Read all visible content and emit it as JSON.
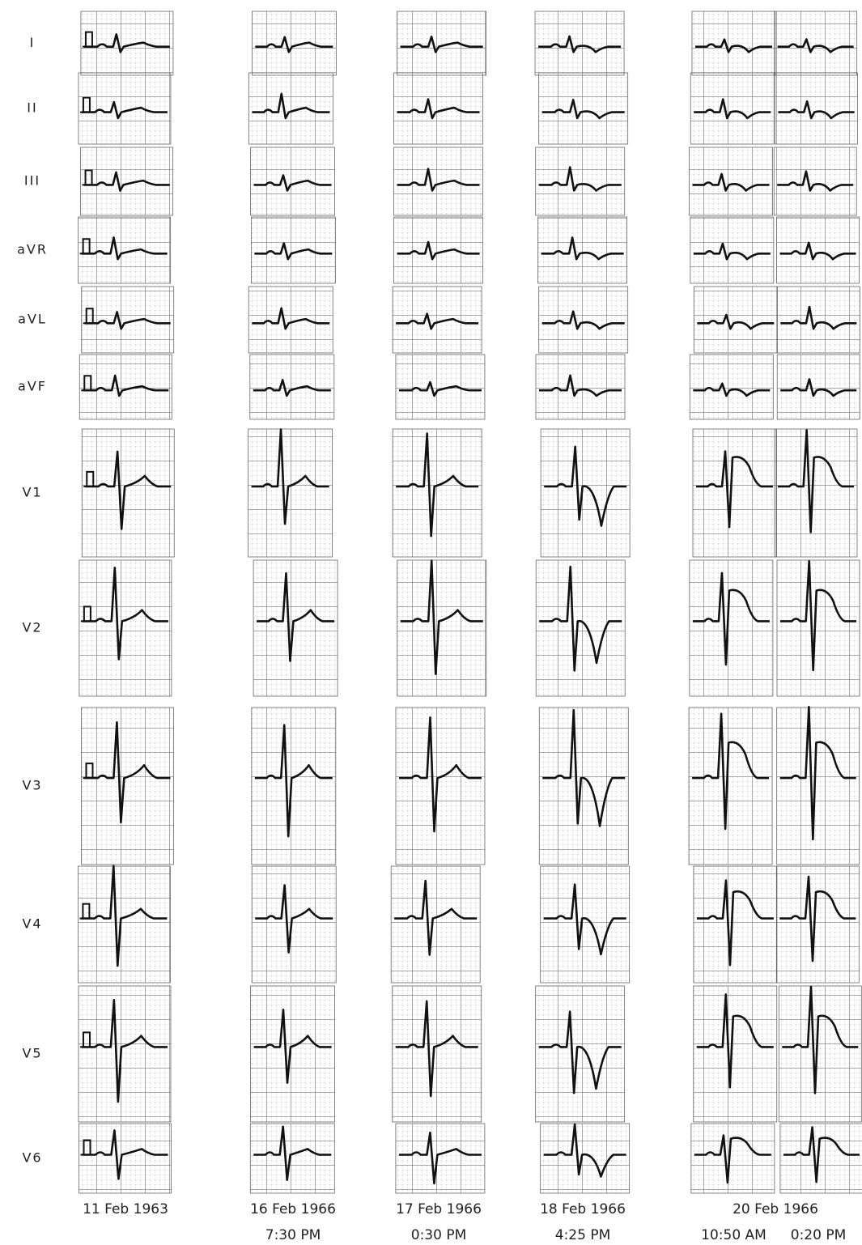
{
  "leads": [
    "I",
    "II",
    "III",
    "aVR",
    "aVL",
    "aVF",
    "V1",
    "V2",
    "V3",
    "V4",
    "V5",
    "V6"
  ],
  "recordings": [
    {
      "date": "11 Feb 1963"
    },
    {
      "date": "16 Feb 1966",
      "times": [
        "7:30 PM"
      ]
    },
    {
      "date": "17 Feb 1966",
      "times": [
        "0:30 PM"
      ]
    },
    {
      "date": "18 Feb 1966",
      "times": [
        "4:25 PM"
      ]
    },
    {
      "date": "20 Feb 1966",
      "times": [
        "10:50 AM",
        "0:20 PM"
      ]
    }
  ]
}
